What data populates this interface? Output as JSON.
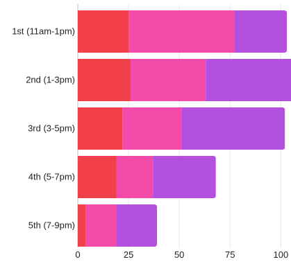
{
  "chart_data": {
    "type": "bar",
    "orientation": "horizontal",
    "stacked": true,
    "categories": [
      "1st (11am-1pm)",
      "2nd (1-3pm)",
      "3rd (3-5pm)",
      "4th (5-7pm)",
      "5th (7-9pm)"
    ],
    "series": [
      {
        "color": "#f2404b",
        "values": [
          25,
          26,
          22,
          19,
          4
        ]
      },
      {
        "color": "#f44aa9",
        "values": [
          52,
          37,
          29,
          18,
          15
        ]
      },
      {
        "color": "#b350e0",
        "values": [
          26,
          50,
          51,
          31,
          20
        ]
      }
    ],
    "x_ticks": [
      0,
      25,
      50,
      75,
      100
    ],
    "xlim": [
      0,
      105
    ],
    "grid": true,
    "title": "",
    "xlabel": "",
    "ylabel": ""
  }
}
